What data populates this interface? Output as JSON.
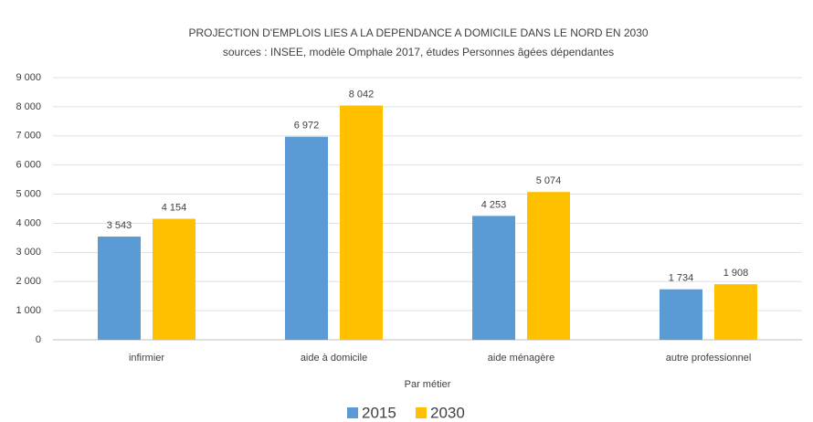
{
  "chart_data": {
    "type": "bar",
    "title": "PROJECTION D'EMPLOIS LIES A LA DEPENDANCE A DOMICILE DANS LE NORD EN 2030",
    "subtitle": "sources : INSEE, modèle Omphale 2017, études Personnes âgées dépendantes",
    "x_label": "Par métier",
    "categories": [
      "infirmier",
      "aide à domicile",
      "aide ménagère",
      "autre professionnel"
    ],
    "series": [
      {
        "name": "2015",
        "color": "#5b9bd5",
        "values": [
          3543,
          6972,
          4253,
          1734
        ],
        "value_labels": [
          "3 543",
          "6 972",
          "4 253",
          "1 734"
        ]
      },
      {
        "name": "2030",
        "color": "#ffc000",
        "values": [
          4154,
          8042,
          5074,
          1908
        ],
        "value_labels": [
          "4 154",
          "8 042",
          "5 074",
          "1 908"
        ]
      }
    ],
    "ylim": [
      0,
      9000
    ],
    "yticks": [
      0,
      {
        "value": 1000,
        "label": "1 000"
      },
      {
        "value": 2000,
        "label": "2 000"
      },
      {
        "value": 3000,
        "label": "3 000"
      },
      {
        "value": 4000,
        "label": "4 000"
      },
      {
        "value": 5000,
        "label": "5 000"
      },
      {
        "value": 6000,
        "label": "6 000"
      },
      {
        "value": 7000,
        "label": "7 000"
      },
      {
        "value": 8000,
        "label": "8 000"
      },
      {
        "value": 9000,
        "label": "9 000"
      }
    ],
    "grid": true,
    "legend": "bottom"
  }
}
